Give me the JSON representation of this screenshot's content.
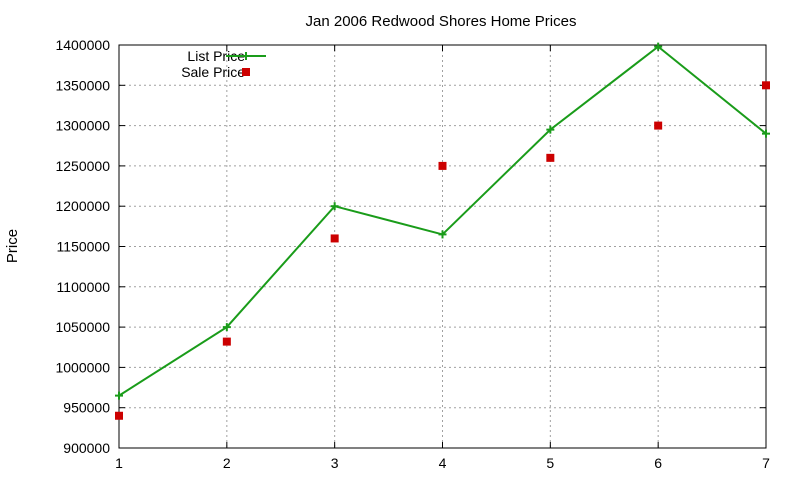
{
  "chart_data": {
    "type": "line",
    "title": "Jan 2006 Redwood Shores Home Prices",
    "xlabel": "",
    "ylabel": "Price",
    "xlim": [
      1,
      7
    ],
    "ylim": [
      900000,
      1400000
    ],
    "xticks": [
      1,
      2,
      3,
      4,
      5,
      6,
      7
    ],
    "yticks": [
      900000,
      950000,
      1000000,
      1050000,
      1100000,
      1150000,
      1200000,
      1250000,
      1300000,
      1350000,
      1400000
    ],
    "grid": true,
    "legend_position": "top-left",
    "series": [
      {
        "name": "List Price",
        "style": "line-with-plus-markers",
        "color": "#1a9c1a",
        "x": [
          1,
          2,
          3,
          4,
          5,
          6,
          7
        ],
        "y": [
          965000,
          1050000,
          1200000,
          1165000,
          1295000,
          1398000,
          1290000
        ]
      },
      {
        "name": "Sale Price",
        "style": "square-markers",
        "color": "#cc0000",
        "x": [
          1,
          2,
          3,
          4,
          5,
          6,
          7
        ],
        "y": [
          940000,
          1032000,
          1160000,
          1250000,
          1260000,
          1300000,
          1350000
        ]
      }
    ]
  }
}
